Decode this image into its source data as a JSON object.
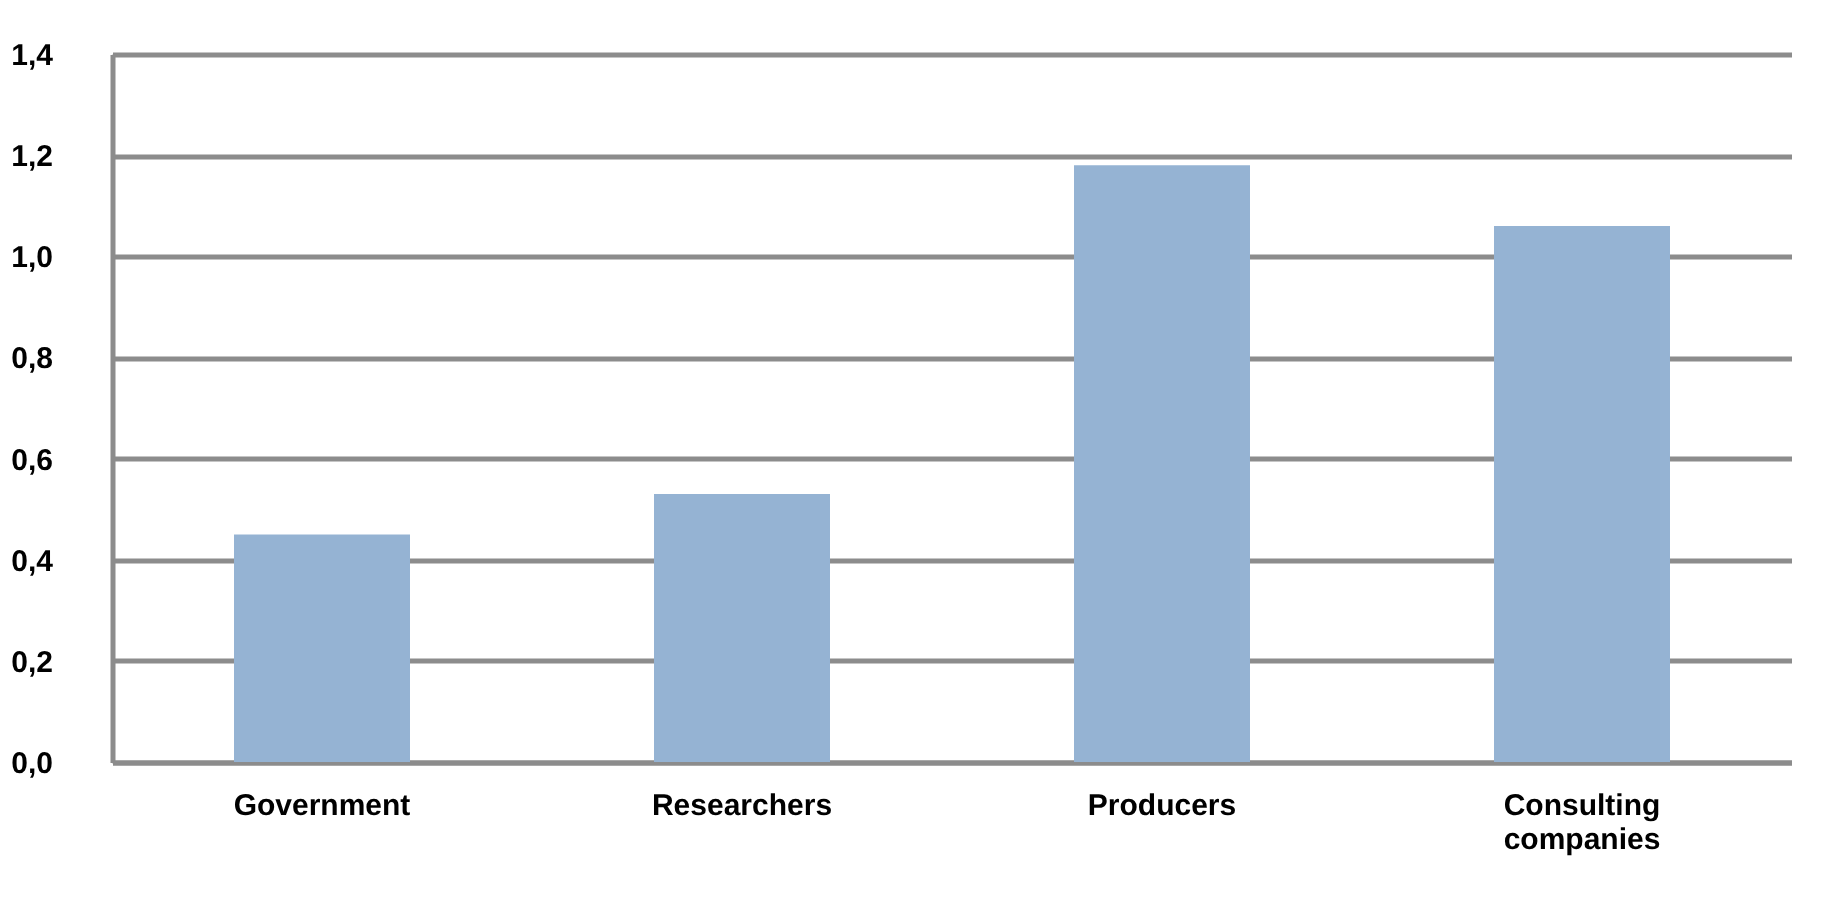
{
  "chart_data": {
    "type": "bar",
    "categories": [
      "Government",
      "Researchers",
      "Producers",
      "Consulting companies"
    ],
    "values": [
      0.45,
      0.53,
      1.18,
      1.06
    ],
    "color": "#95b3d3",
    "ylim": [
      0,
      1.4
    ],
    "yticks": [
      {
        "value": 0,
        "label": "0,0"
      },
      {
        "value": 0.2,
        "label": "0,2"
      },
      {
        "value": 0.4,
        "label": "0,4"
      },
      {
        "value": 0.6,
        "label": "0,6"
      },
      {
        "value": 0.8,
        "label": "0,8"
      },
      {
        "value": 1.0,
        "label": "1,0"
      },
      {
        "value": 1.2,
        "label": "1,2"
      },
      {
        "value": 1.4,
        "label": "1,4"
      }
    ],
    "grid": "y"
  }
}
